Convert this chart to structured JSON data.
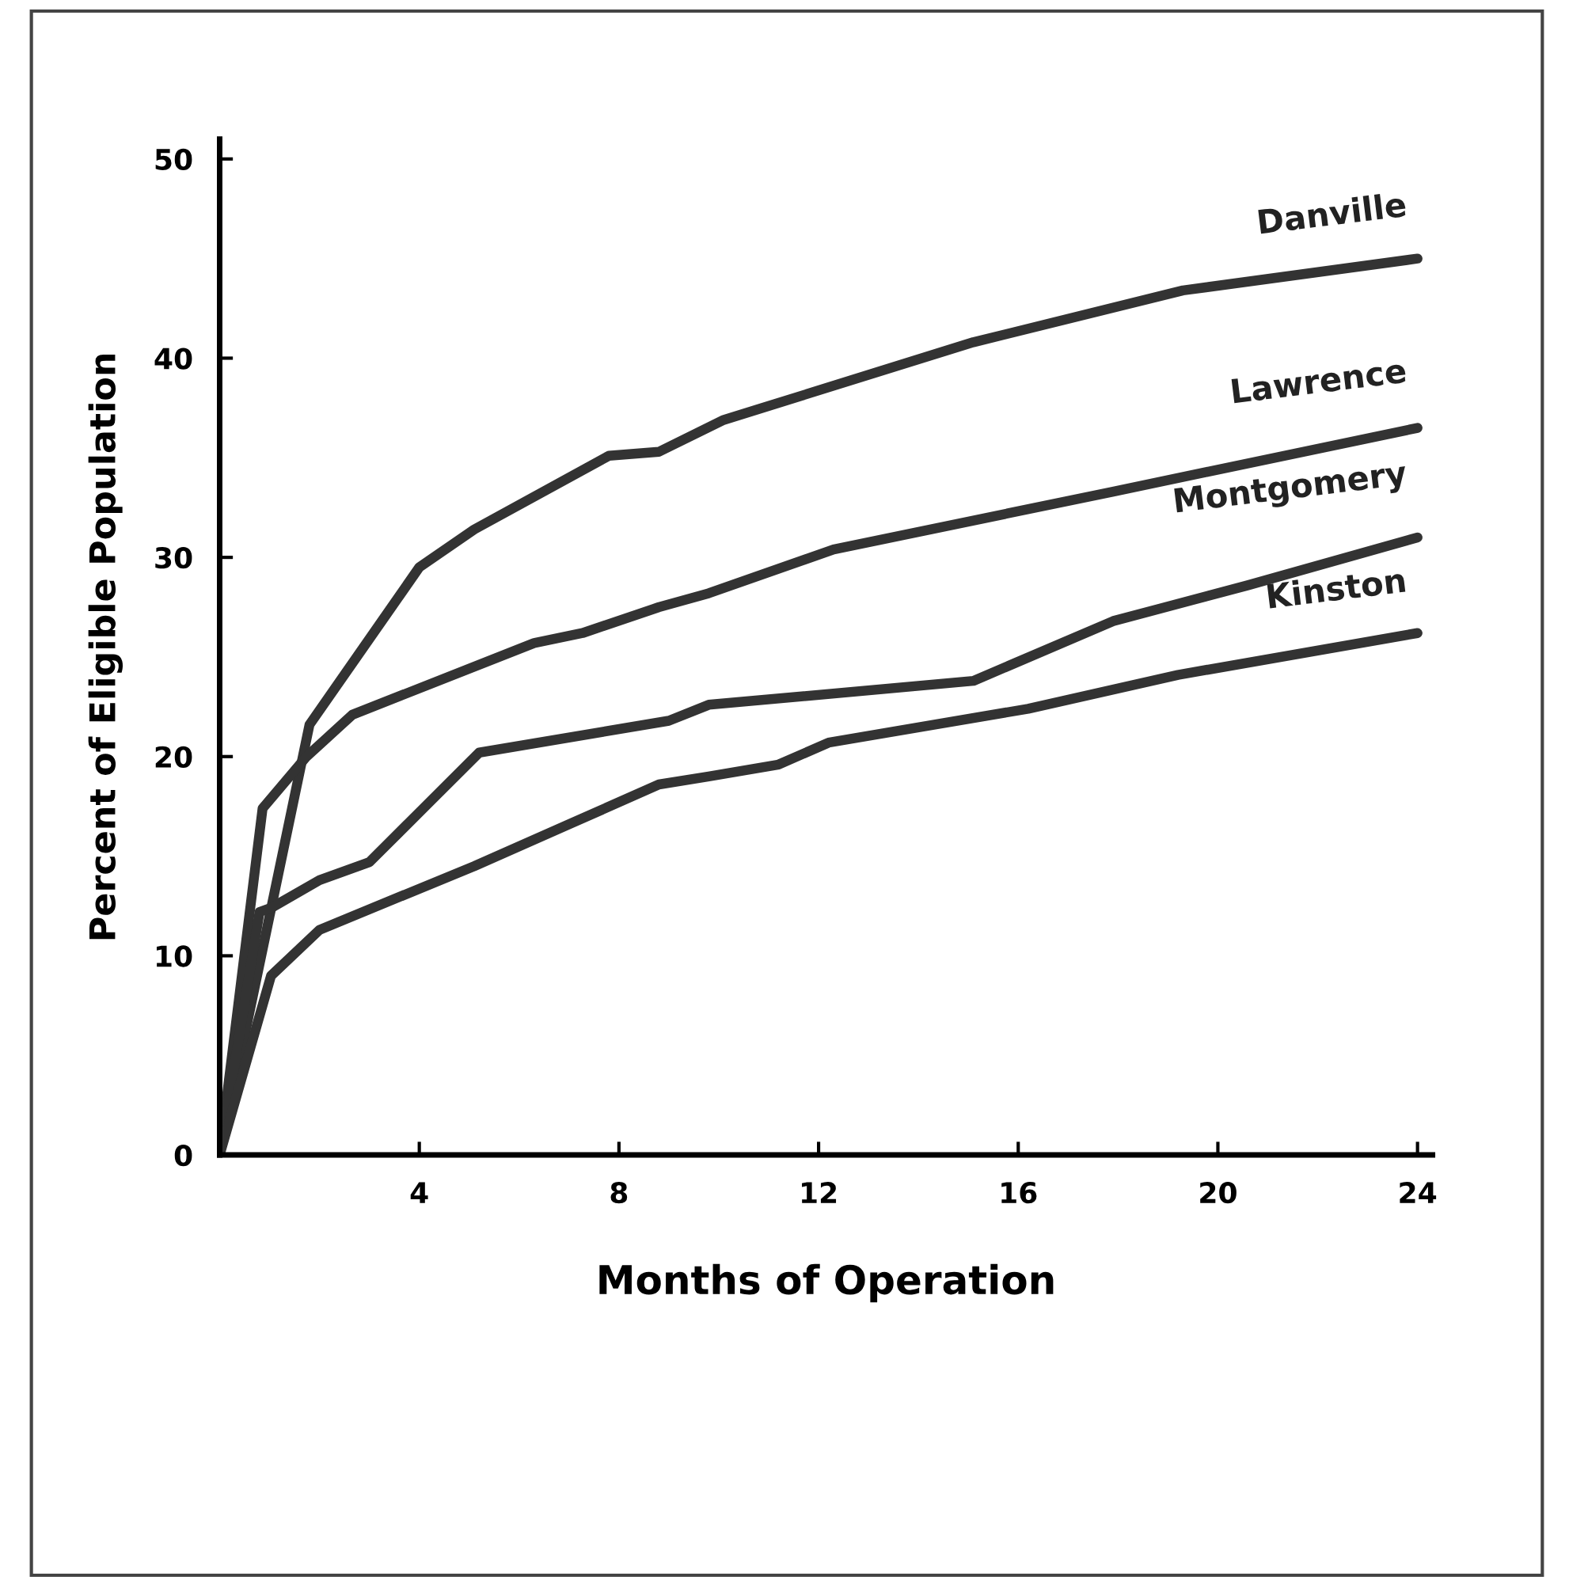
{
  "chart_data": {
    "type": "line",
    "xlabel": "Months of Operation",
    "ylabel": "Percent of Eligible Population",
    "xlim": [
      0,
      24.3
    ],
    "ylim": [
      0,
      51
    ],
    "xticks": [
      4,
      8,
      12,
      16,
      20,
      24
    ],
    "yticks": [
      0,
      10,
      20,
      30,
      40,
      50
    ],
    "grid": false,
    "legend": false,
    "marker": "none",
    "line_style": "solid",
    "series": [
      {
        "name": "Danville",
        "color": "#333333",
        "x": [
          0,
          1.8,
          4.0,
          5.1,
          7.8,
          8.8,
          10.1,
          15.1,
          19.3,
          24
        ],
        "values": [
          0,
          21.6,
          29.5,
          31.4,
          35.1,
          35.3,
          36.9,
          40.8,
          43.4,
          45.0
        ]
      },
      {
        "name": "Lawrence",
        "color": "#333333",
        "x": [
          0,
          0.86,
          1.74,
          2.66,
          6.3,
          7.27,
          8.8,
          9.8,
          12.3,
          17.9,
          24
        ],
        "values": [
          0,
          17.4,
          20.0,
          22.1,
          25.7,
          26.2,
          27.5,
          28.2,
          30.4,
          33.3,
          36.5
        ]
      },
      {
        "name": "Montgomery",
        "color": "#333333",
        "x": [
          0,
          0.8,
          1.03,
          2.0,
          3.0,
          5.2,
          9.0,
          9.8,
          15.1,
          17.9,
          20.6,
          24
        ],
        "values": [
          0,
          12.2,
          12.4,
          13.8,
          14.7,
          20.2,
          21.8,
          22.6,
          23.8,
          26.8,
          28.6,
          31.0
        ]
      },
      {
        "name": "Kinston",
        "color": "#333333",
        "x": [
          0,
          1.03,
          2.0,
          5.1,
          7.0,
          8.8,
          9.8,
          11.2,
          12.2,
          16.2,
          19.2,
          24
        ],
        "values": [
          0,
          9.0,
          11.3,
          14.5,
          16.6,
          18.6,
          19.0,
          19.6,
          20.7,
          22.4,
          24.1,
          26.2
        ]
      }
    ]
  }
}
